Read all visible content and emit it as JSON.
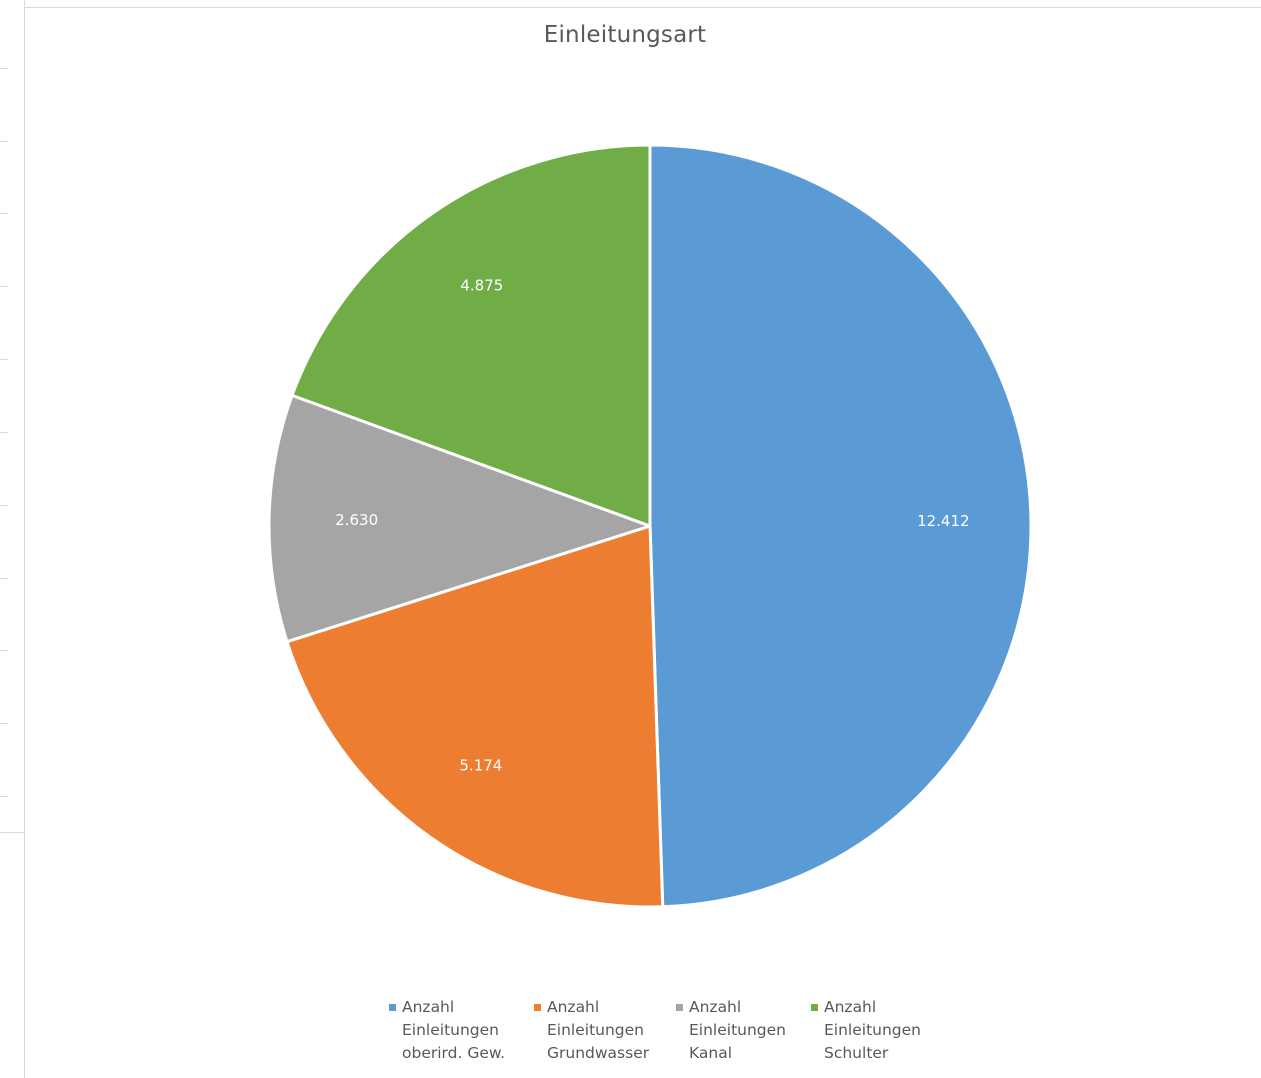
{
  "chart_data": {
    "type": "pie",
    "title": "Einleitungsart",
    "categories": [
      "Anzahl Einleitungen oberird. Gew.",
      "Anzahl Einleitungen Grundwasser",
      "Anzahl Einleitungen Kanal",
      "Anzahl Einleitungen Schulter"
    ],
    "values": [
      12412,
      5174,
      2630,
      4875
    ],
    "labels": [
      "12.412",
      "5.174",
      "2.630",
      "4.875"
    ],
    "colors": [
      "#5b9bd5",
      "#ed7d31",
      "#a5a5a5",
      "#70ad47"
    ],
    "legend_position": "bottom",
    "start_angle": "12 o'clock, clockwise"
  },
  "legend": {
    "items": [
      {
        "lines": [
          "Anzahl",
          "Einleitungen",
          "oberird. Gew."
        ]
      },
      {
        "lines": [
          "Anzahl",
          "Einleitungen",
          "Grundwasser"
        ]
      },
      {
        "lines": [
          "Anzahl",
          "Einleitungen",
          "Kanal"
        ]
      },
      {
        "lines": [
          "Anzahl",
          "Einleitungen",
          "Schulter"
        ]
      }
    ]
  }
}
